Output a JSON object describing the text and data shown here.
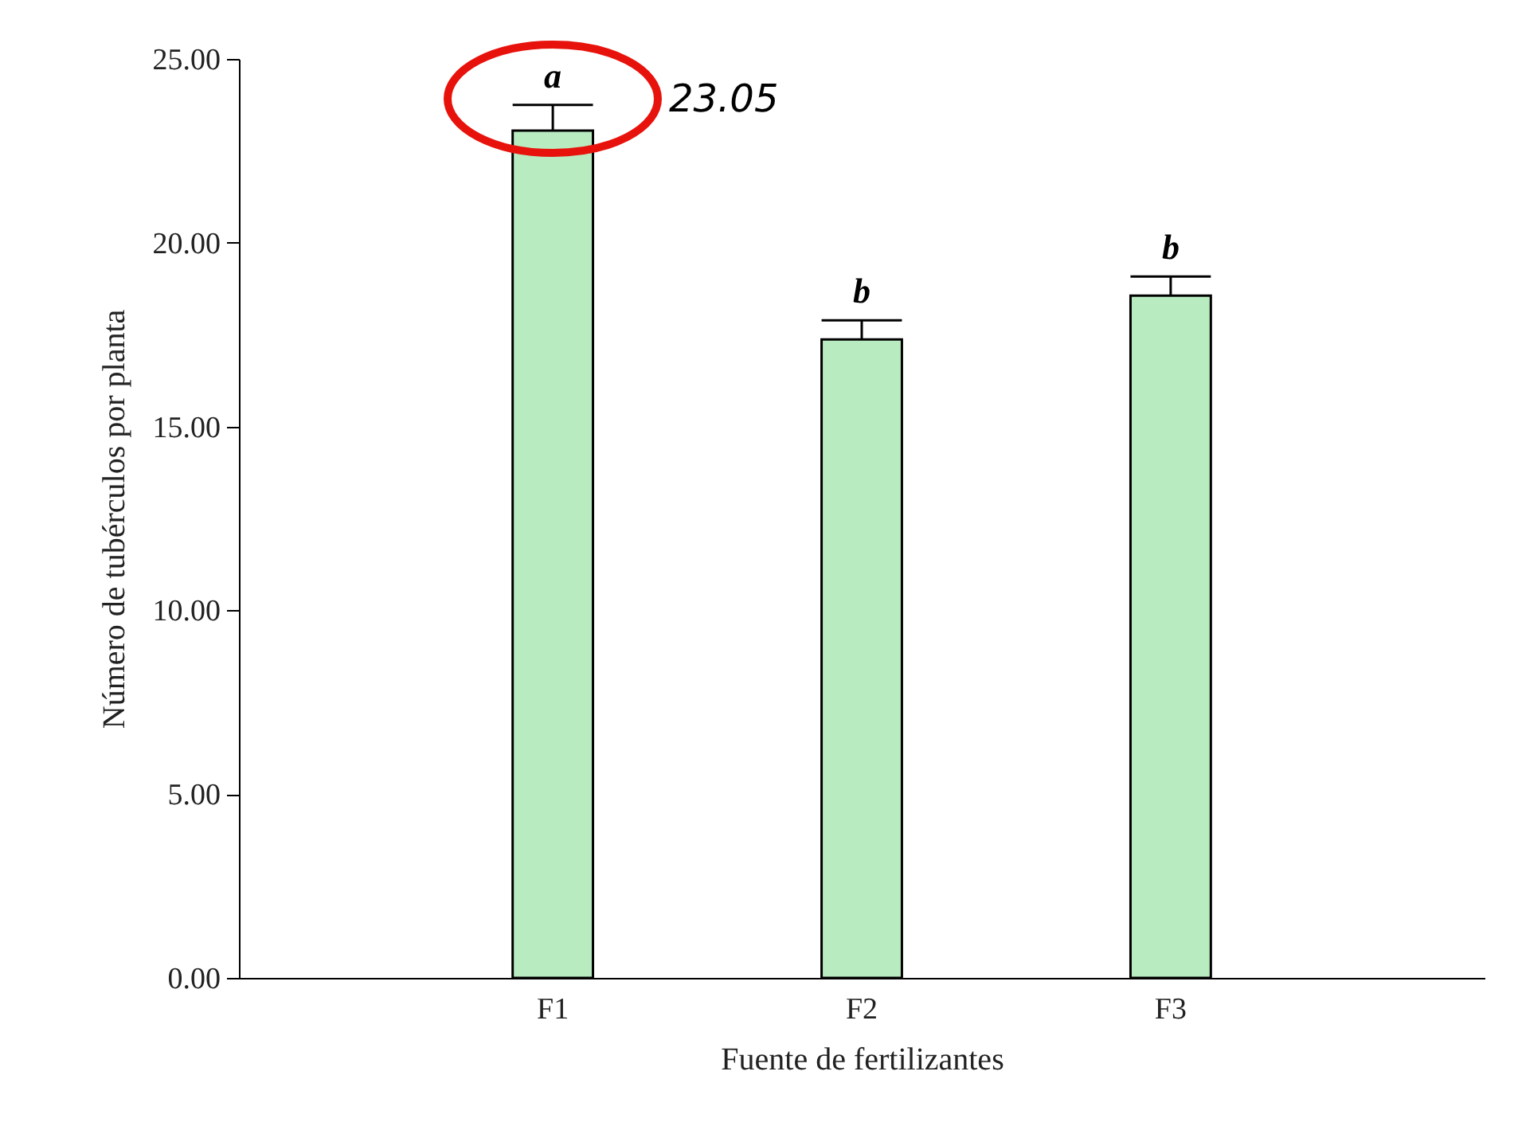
{
  "chart_data": {
    "type": "bar",
    "xlabel": "Fuente de fertilizantes",
    "ylabel": "Número de tubérculos por planta",
    "categories": [
      "F1",
      "F2",
      "F3"
    ],
    "values": [
      23.05,
      17.37,
      18.56
    ],
    "errors": [
      0.7,
      0.52,
      0.52
    ],
    "color": "#b8ebc0",
    "ylim": [
      0,
      25
    ],
    "yticks": [
      {
        "value": 0,
        "label": "0.00"
      },
      {
        "value": 5,
        "label": "5.00"
      },
      {
        "value": 10,
        "label": "10.00"
      },
      {
        "value": 15,
        "label": "15.00"
      },
      {
        "value": 20,
        "label": "20.00"
      },
      {
        "value": 25,
        "label": "25.00"
      }
    ],
    "annotations": [
      {
        "text": "a",
        "x": "F1",
        "y": 23.75
      },
      {
        "text": "b",
        "x": "F2",
        "y": 17.89
      },
      {
        "text": "b",
        "x": "F3",
        "y": 19.08
      },
      "23.05"
    ]
  }
}
